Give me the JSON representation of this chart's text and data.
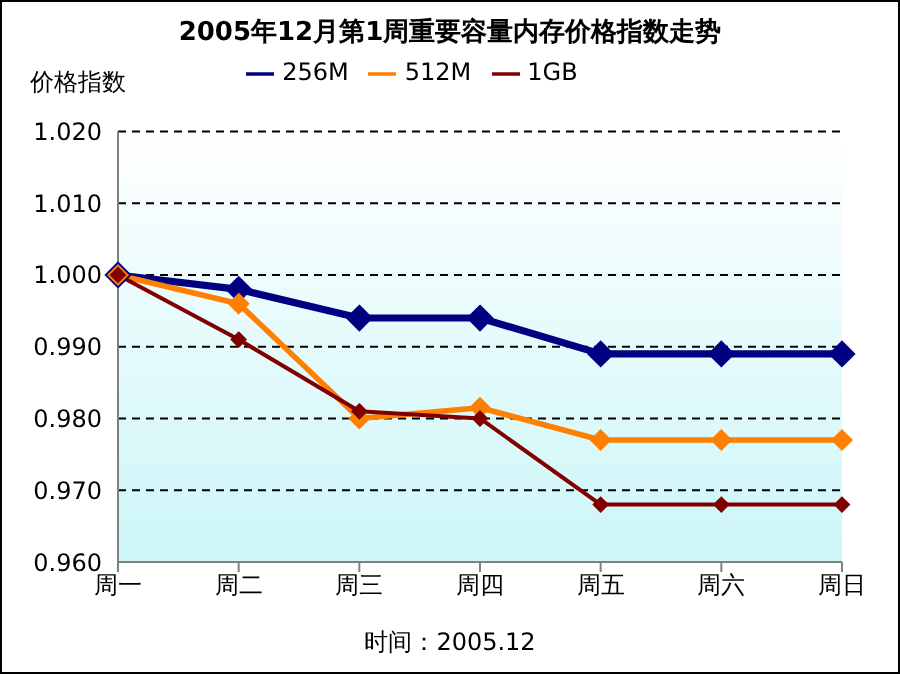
{
  "chart_data": {
    "type": "line",
    "title": "2005年12月第1周重要容量内存价格指数走势",
    "ylabel": "价格指数",
    "categories": [
      "周一",
      "周二",
      "周三",
      "周四",
      "周五",
      "周六",
      "周日"
    ],
    "series": [
      {
        "name": "256M",
        "color": "#000080",
        "values": [
          1.0,
          0.998,
          0.994,
          0.994,
          0.989,
          0.989,
          0.989
        ]
      },
      {
        "name": "512M",
        "color": "#ff8000",
        "values": [
          1.0,
          0.996,
          0.98,
          0.9815,
          0.977,
          0.977,
          0.977
        ]
      },
      {
        "name": "1GB",
        "color": "#800000",
        "values": [
          1.0,
          0.991,
          0.981,
          0.98,
          0.968,
          0.968,
          0.968
        ]
      }
    ],
    "ylim": [
      0.96,
      1.02
    ],
    "yticks": [
      {
        "value": 0.96,
        "label": "0.960"
      },
      {
        "value": 0.97,
        "label": "0.970"
      },
      {
        "value": 0.98,
        "label": "0.980"
      },
      {
        "value": 0.99,
        "label": "0.990"
      },
      {
        "value": 1.0,
        "label": "1.000"
      },
      {
        "value": 1.01,
        "label": "1.010"
      },
      {
        "value": 1.02,
        "label": "1.020"
      }
    ],
    "grid": "y",
    "legend": "top",
    "marker": "diamond",
    "line_style": "solid",
    "annotations": [
      "时间：2005.12"
    ]
  }
}
